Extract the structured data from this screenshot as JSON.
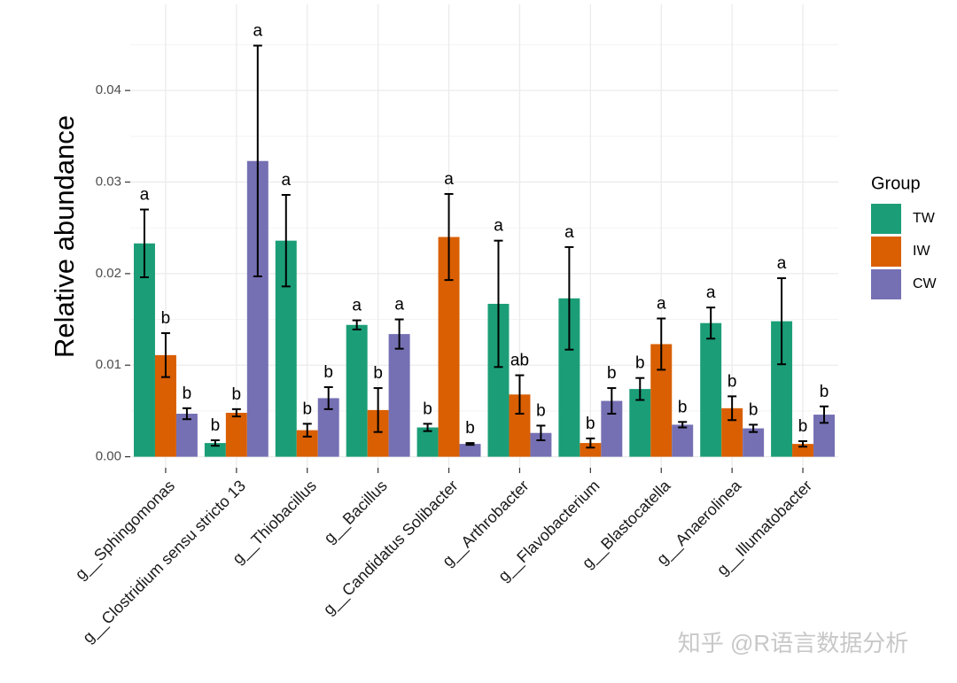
{
  "chart_data": {
    "type": "bar",
    "y_label": "Relative abundance",
    "categories": [
      "g__Sphingomonas",
      "g__Clostridium sensu stricto 13",
      "g__Thiobacillus",
      "g__Bacillus",
      "g__Candidatus Solibacter",
      "g__Arthrobacter",
      "g__Flavobacterium",
      "g__Blastocatella",
      "g__Anaerolinea",
      "g__Illumatobacter"
    ],
    "legend_title": "Group",
    "legend_position": "right",
    "series": [
      {
        "name": "TW",
        "color": "#1b9e77",
        "values": [
          0.0233,
          0.0015,
          0.0236,
          0.0144,
          0.0032,
          0.0167,
          0.0173,
          0.0074,
          0.0146,
          0.0148
        ],
        "errors": [
          0.0037,
          0.0003,
          0.005,
          0.0005,
          0.0004,
          0.0069,
          0.0056,
          0.0012,
          0.0017,
          0.0047
        ],
        "labels": [
          "a",
          "b",
          "a",
          "a",
          "b",
          "a",
          "a",
          "b",
          "a",
          "a"
        ]
      },
      {
        "name": "IW",
        "color": "#d95f02",
        "values": [
          0.0111,
          0.0048,
          0.0029,
          0.0051,
          0.024,
          0.0068,
          0.0015,
          0.0123,
          0.0053,
          0.0014
        ],
        "errors": [
          0.0024,
          0.0004,
          0.0007,
          0.0024,
          0.0047,
          0.0021,
          0.0005,
          0.0028,
          0.0013,
          0.0003
        ],
        "labels": [
          "b",
          "b",
          "b",
          "b",
          "a",
          "ab",
          "b",
          "a",
          "b",
          "b"
        ]
      },
      {
        "name": "CW",
        "color": "#7570b3",
        "values": [
          0.0047,
          0.0323,
          0.0064,
          0.0134,
          0.0014,
          0.0026,
          0.0061,
          0.0035,
          0.0031,
          0.0046
        ],
        "errors": [
          0.0006,
          0.0126,
          0.0012,
          0.0016,
          0.0001,
          0.0008,
          0.0014,
          0.0003,
          0.0004,
          0.0009
        ],
        "labels": [
          "b",
          "a",
          "b",
          "a",
          "b",
          "b",
          "b",
          "b",
          "b",
          "b"
        ]
      }
    ],
    "ylim": [
      -0.0012,
      0.0494
    ],
    "yticks": [
      {
        "value": 0,
        "label": "0.00"
      },
      0.01,
      0.02,
      0.03,
      0.04
    ],
    "grid": true,
    "minor_grid": true
  },
  "watermark": "知乎 @R语言数据分析"
}
